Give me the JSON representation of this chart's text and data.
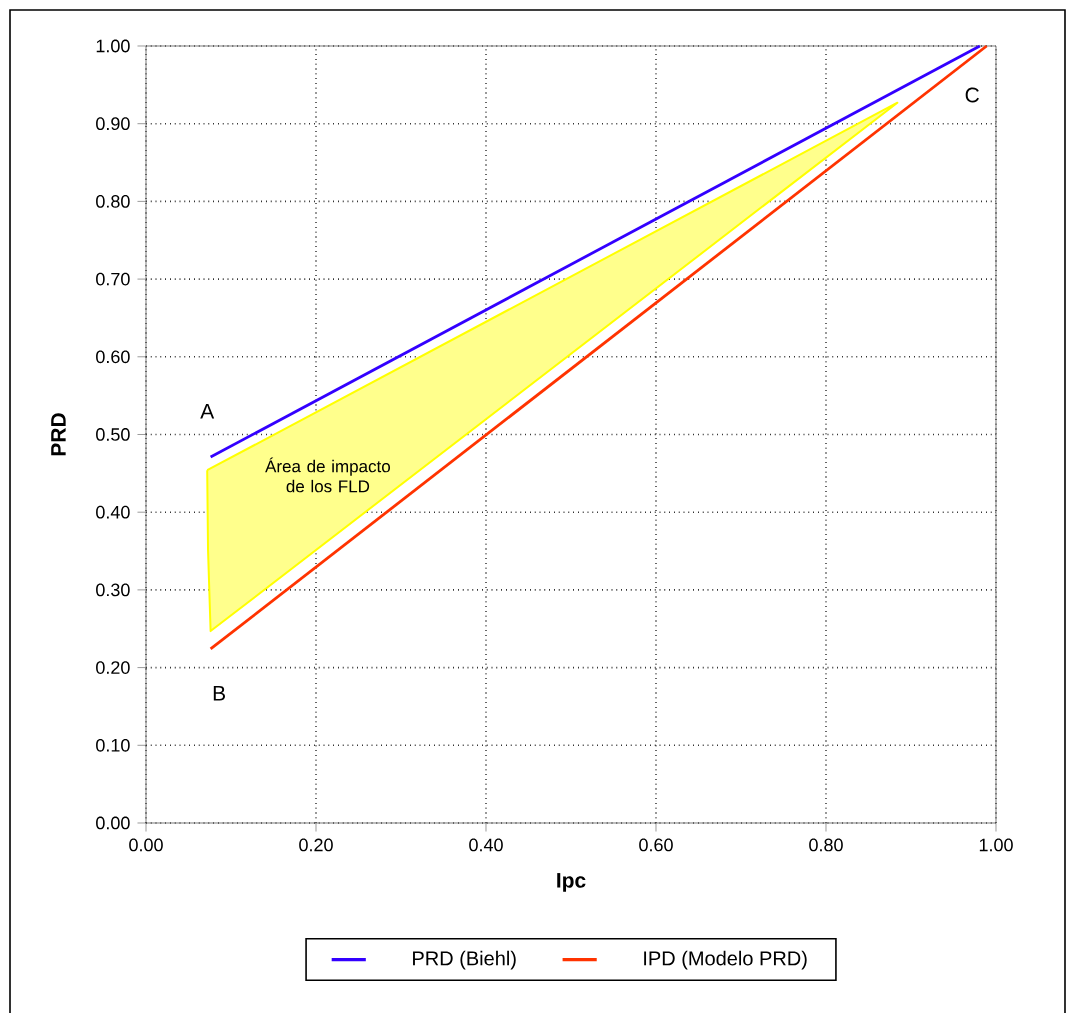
{
  "chart_data": {
    "type": "line",
    "xlabel": "Ipc",
    "ylabel": "PRD",
    "series": [
      {
        "name": "PRD (Biehl)",
        "color": "#3300ff",
        "x": [
          0.076,
          0.981
        ],
        "values": [
          0.471,
          1.0
        ]
      },
      {
        "name": "IPD (Modelo PRD)",
        "color": "#ff3300",
        "x": [
          0.076,
          0.989
        ],
        "values": [
          0.224,
          1.0
        ]
      },
      {
        "type": "area",
        "color": "#ffff00",
        "x": [
          0.072,
          0.884,
          0.076,
          0.073,
          0.072
        ],
        "values": [
          0.454,
          0.927,
          0.247,
          0.35,
          0.454
        ]
      }
    ],
    "xlim": [
      0,
      1
    ],
    "ylim": [
      0,
      1
    ],
    "xticks": [
      {
        "value": 0,
        "label": "0.00"
      },
      {
        "value": 0.2,
        "label": "0.20"
      },
      {
        "value": 0.4,
        "label": "0.40"
      },
      {
        "value": 0.6,
        "label": "0.60"
      },
      {
        "value": 0.8,
        "label": "0.80"
      },
      {
        "value": 1,
        "label": "1.00"
      }
    ],
    "yticks": [
      {
        "value": 0,
        "label": "0.00"
      },
      {
        "value": 0.1,
        "label": "0.10"
      },
      {
        "value": 0.2,
        "label": "0.20"
      },
      {
        "value": 0.3,
        "label": "0.30"
      },
      {
        "value": 0.4,
        "label": "0.40"
      },
      {
        "value": 0.5,
        "label": "0.50"
      },
      {
        "value": 0.6,
        "label": "0.60"
      },
      {
        "value": 0.7,
        "label": "0.70"
      },
      {
        "value": 0.8,
        "label": "0.80"
      },
      {
        "value": 0.9,
        "label": "0.90"
      },
      {
        "value": 1,
        "label": "1.00"
      }
    ],
    "annotations": [
      "A",
      "B",
      "C",
      "Área de impacto de los FLD"
    ],
    "grid": true,
    "legend": "bottom",
    "line_style": "solid",
    "marker": "none"
  }
}
